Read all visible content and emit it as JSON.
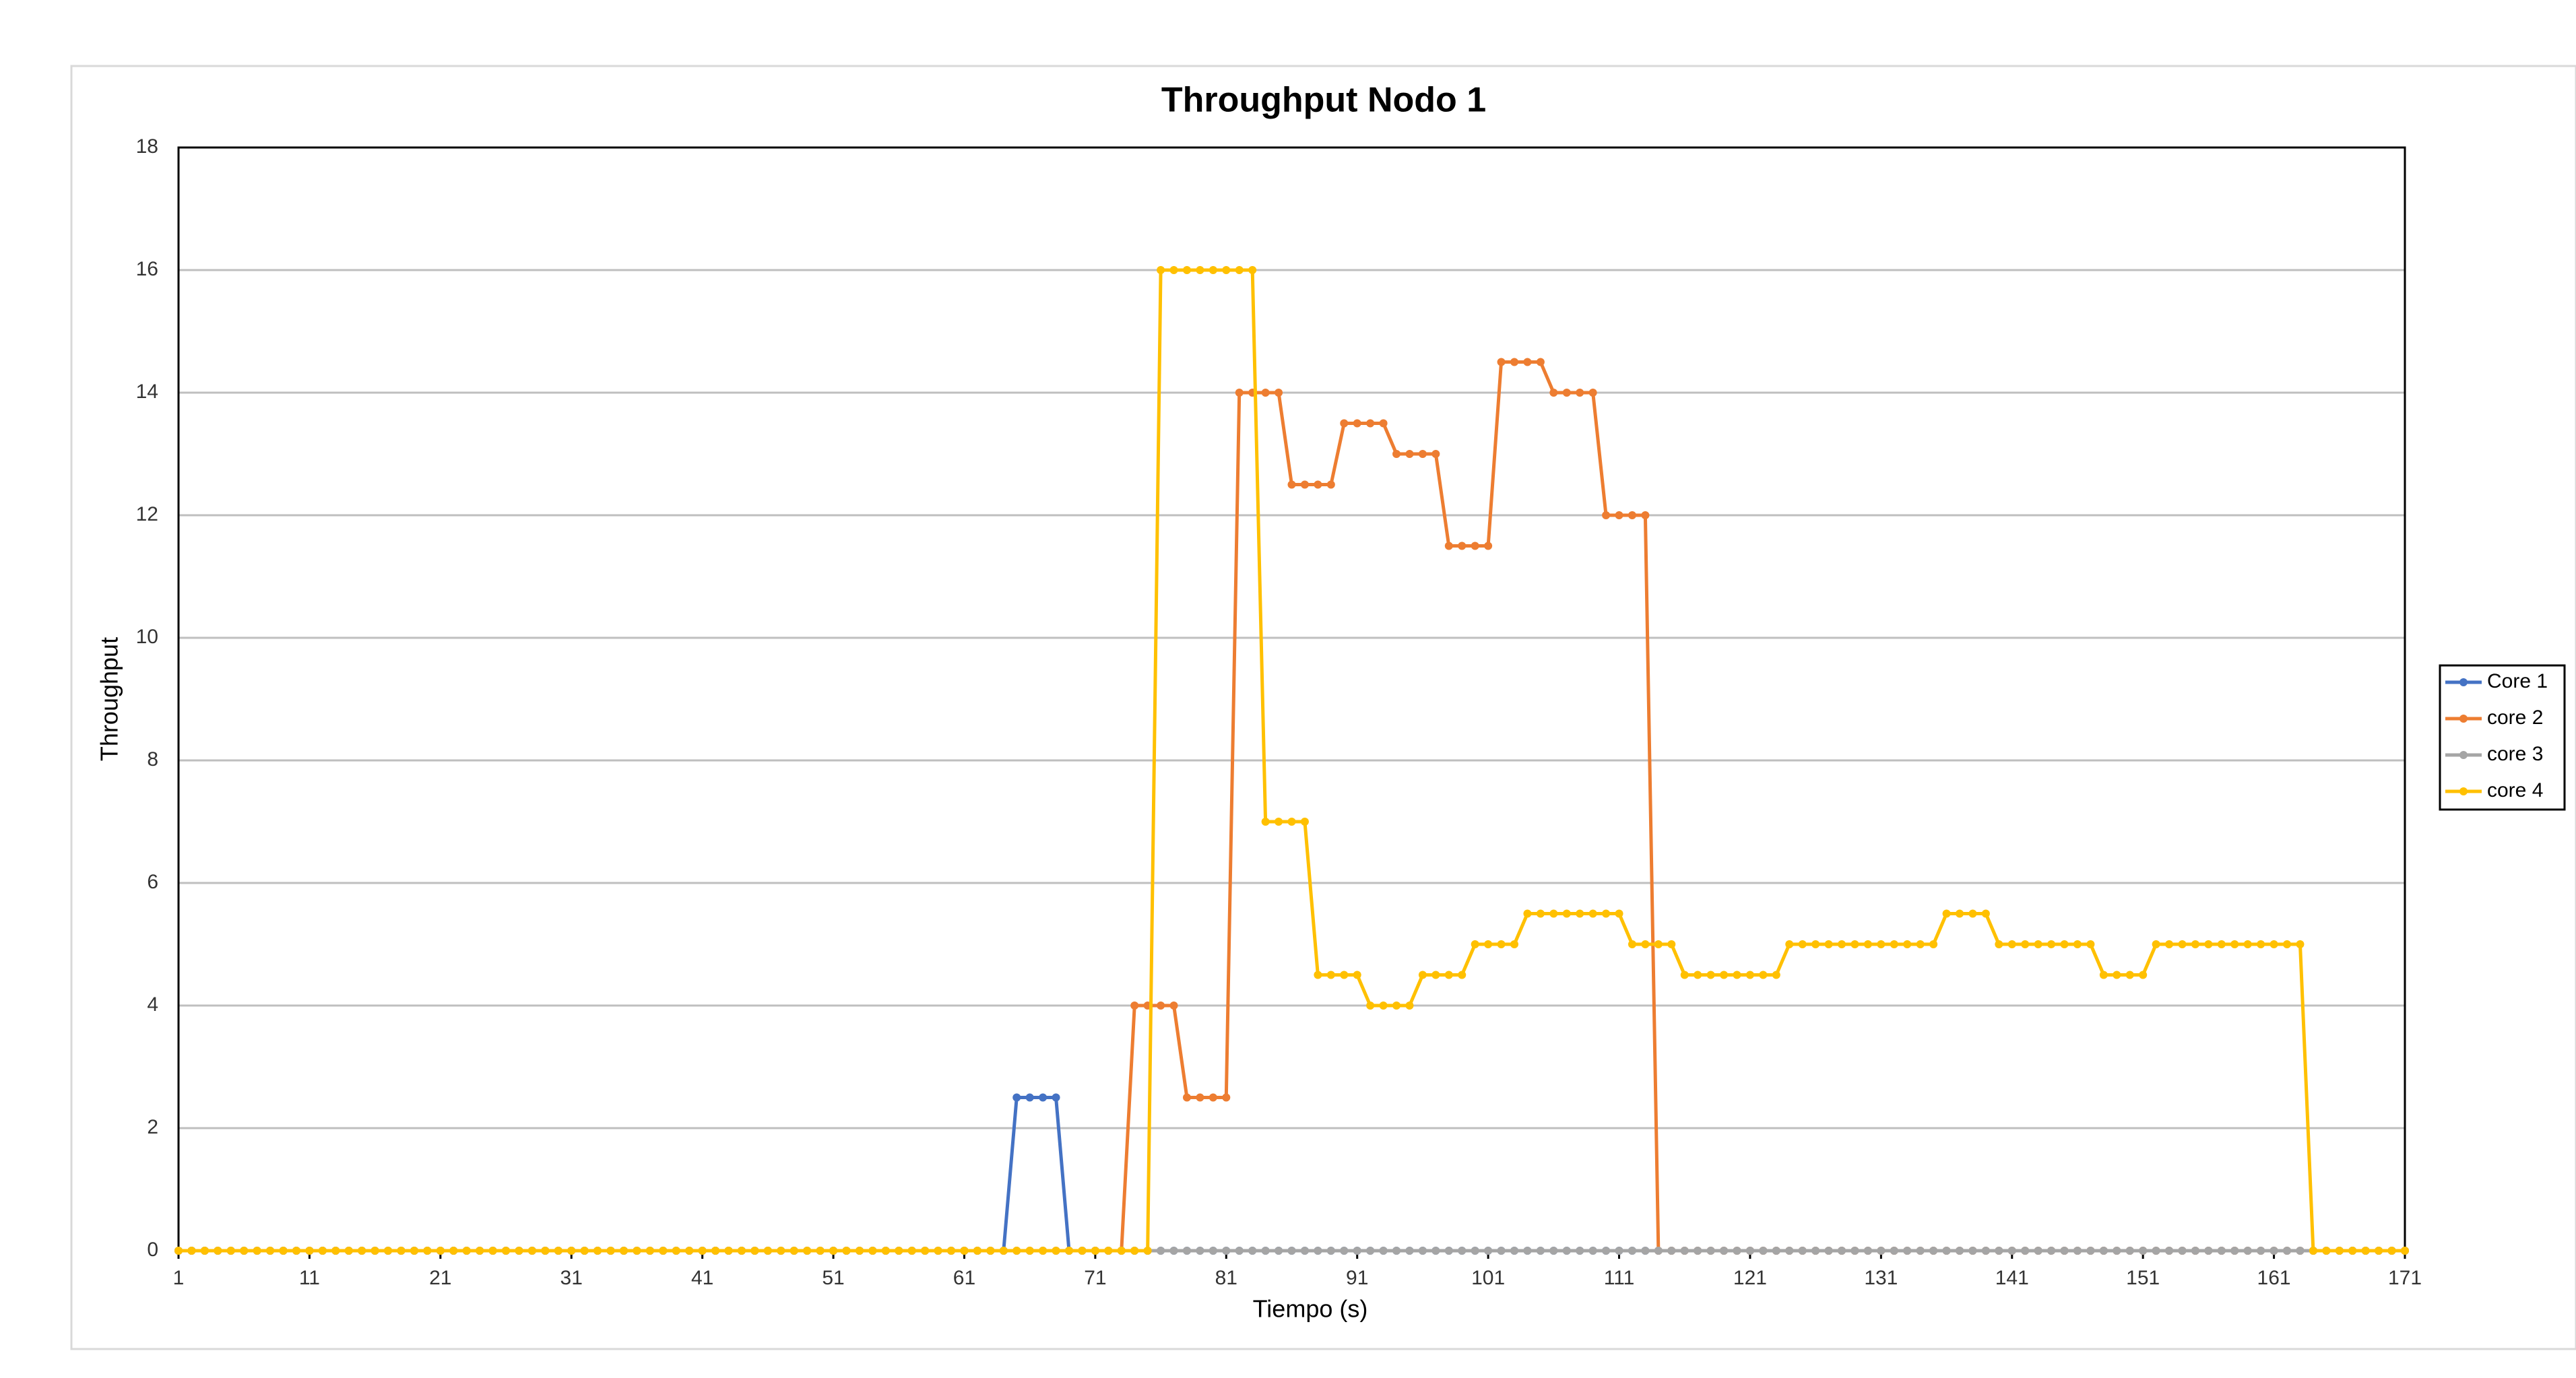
{
  "chart_data": {
    "type": "line",
    "title": "Throughput Nodo 1",
    "x_label": "Tiempo (s)",
    "y_label": "Throughput",
    "x": [
      1,
      2,
      3,
      4,
      5,
      6,
      7,
      8,
      9,
      10,
      11,
      12,
      13,
      14,
      15,
      16,
      17,
      18,
      19,
      20,
      21,
      22,
      23,
      24,
      25,
      26,
      27,
      28,
      29,
      30,
      31,
      32,
      33,
      34,
      35,
      36,
      37,
      38,
      39,
      40,
      41,
      42,
      43,
      44,
      45,
      46,
      47,
      48,
      49,
      50,
      51,
      52,
      53,
      54,
      55,
      56,
      57,
      58,
      59,
      60,
      61,
      62,
      63,
      64,
      65,
      66,
      67,
      68,
      69,
      70,
      71,
      72,
      73,
      74,
      75,
      76,
      77,
      78,
      79,
      80,
      81,
      82,
      83,
      84,
      85,
      86,
      87,
      88,
      89,
      90,
      91,
      92,
      93,
      94,
      95,
      96,
      97,
      98,
      99,
      100,
      101,
      102,
      103,
      104,
      105,
      106,
      107,
      108,
      109,
      110,
      111,
      112,
      113,
      114,
      115,
      116,
      117,
      118,
      119,
      120,
      121,
      122,
      123,
      124,
      125,
      126,
      127,
      128,
      129,
      130,
      131,
      132,
      133,
      134,
      135,
      136,
      137,
      138,
      139,
      140,
      141,
      142,
      143,
      144,
      145,
      146,
      147,
      148,
      149,
      150,
      151,
      152,
      153,
      154,
      155,
      156,
      157,
      158,
      159,
      160,
      161,
      162,
      163,
      164,
      165,
      166,
      167,
      168,
      169,
      170,
      171
    ],
    "xlim": [
      1,
      171
    ],
    "xticks": [
      1,
      11,
      21,
      31,
      41,
      51,
      61,
      71,
      81,
      91,
      101,
      111,
      121,
      131,
      141,
      151,
      161,
      171
    ],
    "ylim": [
      0,
      18
    ],
    "yticks": [
      0,
      2,
      4,
      6,
      8,
      10,
      12,
      14,
      16,
      18
    ],
    "grid": true,
    "legend": "right",
    "series": [
      {
        "name": "Core 1",
        "color": "#4472c4",
        "values": [
          0,
          0,
          0,
          0,
          0,
          0,
          0,
          0,
          0,
          0,
          0,
          0,
          0,
          0,
          0,
          0,
          0,
          0,
          0,
          0,
          0,
          0,
          0,
          0,
          0,
          0,
          0,
          0,
          0,
          0,
          0,
          0,
          0,
          0,
          0,
          0,
          0,
          0,
          0,
          0,
          0,
          0,
          0,
          0,
          0,
          0,
          0,
          0,
          0,
          0,
          0,
          0,
          0,
          0,
          0,
          0,
          0,
          0,
          0,
          0,
          0,
          0,
          0,
          0,
          2.5,
          2.5,
          2.5,
          2.5,
          0,
          0,
          0,
          0,
          0,
          0,
          0,
          0,
          0,
          0,
          0,
          0,
          0,
          0,
          0,
          0,
          0,
          0,
          0,
          0,
          0,
          0,
          0,
          0,
          0,
          0,
          0,
          0,
          0,
          0,
          0,
          0,
          0,
          0,
          0,
          0,
          0,
          0,
          0,
          0,
          0,
          0,
          0,
          0,
          0,
          0,
          0,
          0,
          0,
          0,
          0,
          0,
          0,
          0,
          0,
          0,
          0,
          0,
          0,
          0,
          0,
          0,
          0,
          0,
          0,
          0,
          0,
          0,
          0,
          0,
          0,
          0,
          0,
          0,
          0,
          0,
          0,
          0,
          0,
          0,
          0,
          0,
          0,
          0,
          0,
          0,
          0,
          0,
          0,
          0,
          0,
          0,
          0,
          0,
          0,
          0,
          0,
          0,
          0,
          0,
          0,
          0,
          0
        ]
      },
      {
        "name": "core 2",
        "color": "#ed7d31",
        "values": [
          0,
          0,
          0,
          0,
          0,
          0,
          0,
          0,
          0,
          0,
          0,
          0,
          0,
          0,
          0,
          0,
          0,
          0,
          0,
          0,
          0,
          0,
          0,
          0,
          0,
          0,
          0,
          0,
          0,
          0,
          0,
          0,
          0,
          0,
          0,
          0,
          0,
          0,
          0,
          0,
          0,
          0,
          0,
          0,
          0,
          0,
          0,
          0,
          0,
          0,
          0,
          0,
          0,
          0,
          0,
          0,
          0,
          0,
          0,
          0,
          0,
          0,
          0,
          0,
          0,
          0,
          0,
          0,
          0,
          0,
          0,
          0,
          0,
          4,
          4,
          4,
          4,
          2.5,
          2.5,
          2.5,
          2.5,
          14,
          14,
          14,
          14,
          12.5,
          12.5,
          12.5,
          12.5,
          13.5,
          13.5,
          13.5,
          13.5,
          13,
          13,
          13,
          13,
          11.5,
          11.5,
          11.5,
          11.5,
          14.5,
          14.5,
          14.5,
          14.5,
          14,
          14,
          14,
          14,
          12,
          12,
          12,
          12,
          0,
          0,
          0,
          0,
          0,
          0,
          0,
          0,
          0,
          0,
          0,
          0,
          0,
          0,
          0,
          0,
          0,
          0,
          0,
          0,
          0,
          0,
          0,
          0,
          0,
          0,
          0,
          0,
          0,
          0,
          0,
          0,
          0,
          0,
          0,
          0,
          0,
          0,
          0,
          0,
          0,
          0,
          0,
          0,
          0,
          0,
          0,
          0,
          0,
          0,
          0,
          0,
          0,
          0,
          0,
          0,
          0,
          0
        ]
      },
      {
        "name": "core 3",
        "color": "#a5a5a5",
        "values": [
          0,
          0,
          0,
          0,
          0,
          0,
          0,
          0,
          0,
          0,
          0,
          0,
          0,
          0,
          0,
          0,
          0,
          0,
          0,
          0,
          0,
          0,
          0,
          0,
          0,
          0,
          0,
          0,
          0,
          0,
          0,
          0,
          0,
          0,
          0,
          0,
          0,
          0,
          0,
          0,
          0,
          0,
          0,
          0,
          0,
          0,
          0,
          0,
          0,
          0,
          0,
          0,
          0,
          0,
          0,
          0,
          0,
          0,
          0,
          0,
          0,
          0,
          0,
          0,
          0,
          0,
          0,
          0,
          0,
          0,
          0,
          0,
          0,
          0,
          0,
          0,
          0,
          0,
          0,
          0,
          0,
          0,
          0,
          0,
          0,
          0,
          0,
          0,
          0,
          0,
          0,
          0,
          0,
          0,
          0,
          0,
          0,
          0,
          0,
          0,
          0,
          0,
          0,
          0,
          0,
          0,
          0,
          0,
          0,
          0,
          0,
          0,
          0,
          0,
          0,
          0,
          0,
          0,
          0,
          0,
          0,
          0,
          0,
          0,
          0,
          0,
          0,
          0,
          0,
          0,
          0,
          0,
          0,
          0,
          0,
          0,
          0,
          0,
          0,
          0,
          0,
          0,
          0,
          0,
          0,
          0,
          0,
          0,
          0,
          0,
          0,
          0,
          0,
          0,
          0,
          0,
          0,
          0,
          0,
          0,
          0,
          0,
          0,
          0,
          0,
          0,
          0,
          0,
          0,
          0,
          0
        ]
      },
      {
        "name": "core 4",
        "color": "#ffc000",
        "values": [
          0,
          0,
          0,
          0,
          0,
          0,
          0,
          0,
          0,
          0,
          0,
          0,
          0,
          0,
          0,
          0,
          0,
          0,
          0,
          0,
          0,
          0,
          0,
          0,
          0,
          0,
          0,
          0,
          0,
          0,
          0,
          0,
          0,
          0,
          0,
          0,
          0,
          0,
          0,
          0,
          0,
          0,
          0,
          0,
          0,
          0,
          0,
          0,
          0,
          0,
          0,
          0,
          0,
          0,
          0,
          0,
          0,
          0,
          0,
          0,
          0,
          0,
          0,
          0,
          0,
          0,
          0,
          0,
          0,
          0,
          0,
          0,
          0,
          0,
          0,
          16,
          16,
          16,
          16,
          16,
          16,
          16,
          16,
          7,
          7,
          7,
          7,
          4.5,
          4.5,
          4.5,
          4.5,
          4,
          4,
          4,
          4,
          4.5,
          4.5,
          4.5,
          4.5,
          5,
          5,
          5,
          5,
          5.5,
          5.5,
          5.5,
          5.5,
          5.5,
          5.5,
          5.5,
          5.5,
          5,
          5,
          5,
          5,
          4.5,
          4.5,
          4.5,
          4.5,
          4.5,
          4.5,
          4.5,
          4.5,
          5,
          5,
          5,
          5,
          5,
          5,
          5,
          5,
          5,
          5,
          5,
          5,
          5.5,
          5.5,
          5.5,
          5.5,
          5,
          5,
          5,
          5,
          5,
          5,
          5,
          5,
          4.5,
          4.5,
          4.5,
          4.5,
          5,
          5,
          5,
          5,
          5,
          5,
          5,
          5,
          5,
          5,
          5,
          5,
          0,
          0,
          0,
          0,
          0,
          0,
          0,
          0
        ]
      }
    ]
  }
}
